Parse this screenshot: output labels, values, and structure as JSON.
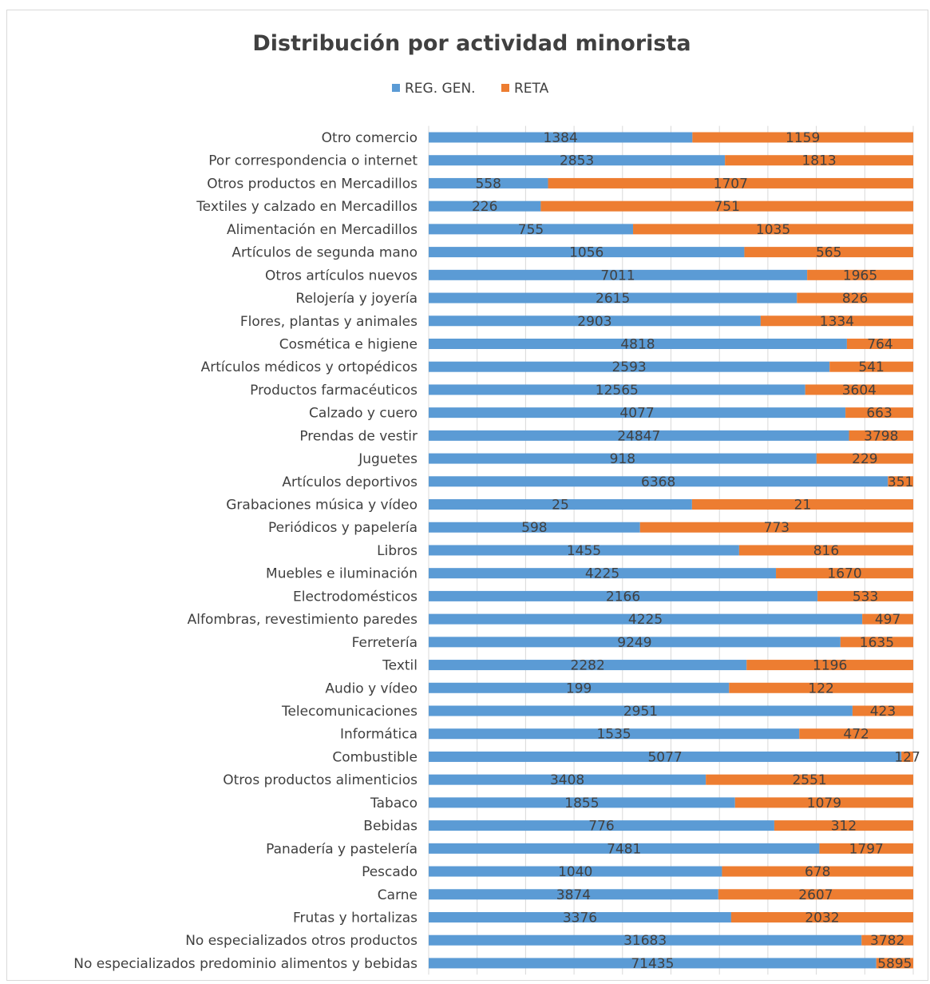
{
  "chart_data": {
    "type": "bar",
    "orientation": "horizontal",
    "stacking": "percent",
    "title": "Distribución por actividad minorista",
    "legend_position": "top",
    "gridlines": true,
    "categories": [
      "Otro comercio",
      "Por correspondencia o internet",
      "Otros productos en Mercadillos",
      "Textiles y calzado en Mercadillos",
      "Alimentación en Mercadillos",
      "Artículos de segunda mano",
      "Otros artículos nuevos",
      "Relojería y joyería",
      "Flores, plantas y animales",
      "Cosmética e higiene",
      "Artículos médicos y ortopédicos",
      "Productos farmacéuticos",
      "Calzado y cuero",
      "Prendas de vestir",
      "Juguetes",
      "Artículos deportivos",
      "Grabaciones música y vídeo",
      "Periódicos y papelería",
      "Libros",
      "Muebles e iluminación",
      "Electrodomésticos",
      "Alfombras, revestimiento paredes",
      "Ferretería",
      "Textil",
      "Audio y vídeo",
      "Telecomunicaciones",
      "Informática",
      "Combustible",
      "Otros productos alimenticios",
      "Tabaco",
      "Bebidas",
      "Panadería y pastelería",
      "Pescado",
      "Carne",
      "Frutas y hortalizas",
      "No especializados otros productos",
      "No especializados predominio alimentos y bebidas"
    ],
    "series": [
      {
        "name": "REG. GEN.",
        "color": "#5b9bd5",
        "values": [
          1384,
          2853,
          558,
          226,
          755,
          1056,
          7011,
          2615,
          2903,
          4818,
          2593,
          12565,
          4077,
          24847,
          918,
          6368,
          25,
          598,
          1455,
          4225,
          2166,
          4225,
          9249,
          2282,
          199,
          2951,
          1535,
          5077,
          3408,
          1855,
          776,
          7481,
          1040,
          3874,
          3376,
          31683,
          71435
        ]
      },
      {
        "name": "RETA",
        "color": "#ed7d31",
        "values": [
          1159,
          1813,
          1707,
          751,
          1035,
          565,
          1965,
          826,
          1334,
          764,
          541,
          3604,
          663,
          3798,
          229,
          351,
          21,
          773,
          816,
          1670,
          533,
          497,
          1635,
          1196,
          122,
          423,
          472,
          127,
          2551,
          1079,
          312,
          1797,
          678,
          2607,
          2032,
          3782,
          5895
        ]
      }
    ]
  }
}
